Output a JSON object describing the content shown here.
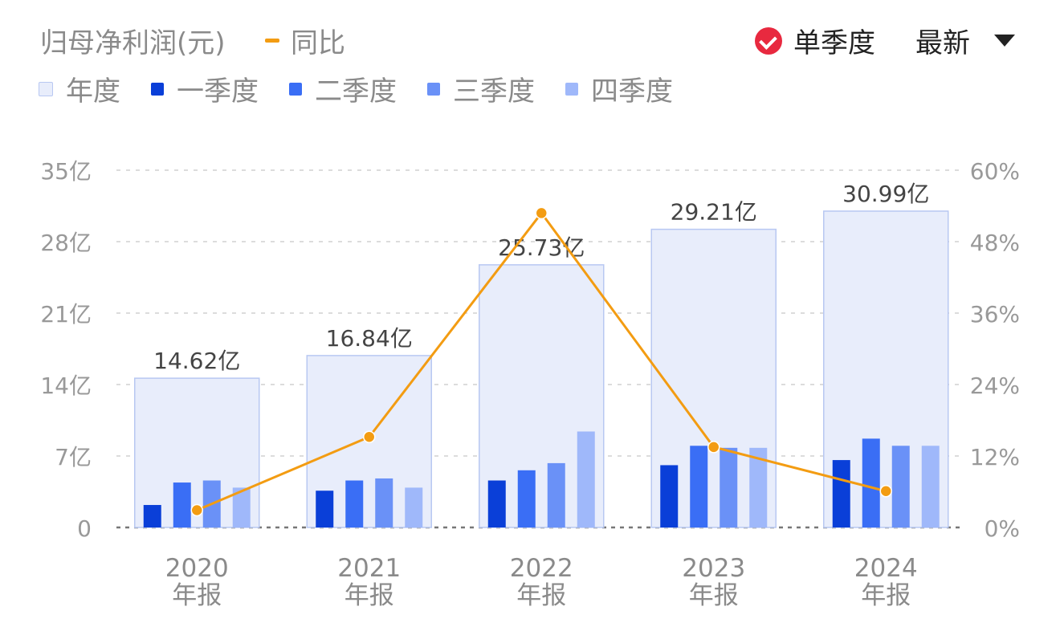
{
  "header": {
    "title": "归母净利润(元)",
    "yoy_label": "同比",
    "toggle_label": "单季度",
    "sort_label": "最新"
  },
  "legend": [
    {
      "label": "年度",
      "color": "#e8edfb"
    },
    {
      "label": "一季度",
      "color": "#0a3fd8"
    },
    {
      "label": "二季度",
      "color": "#3a6ef5"
    },
    {
      "label": "三季度",
      "color": "#6a91f7"
    },
    {
      "label": "四季度",
      "color": "#9fb8fa"
    }
  ],
  "chart_data": {
    "type": "bar",
    "categories": [
      "2020",
      "2021",
      "2022",
      "2023",
      "2024"
    ],
    "category_sublabel": "年报",
    "annual": {
      "name": "年度",
      "values": [
        14.62,
        16.84,
        25.73,
        29.21,
        30.99
      ],
      "labels": [
        "14.62亿",
        "16.84亿",
        "25.73亿",
        "29.21亿",
        "30.99亿"
      ]
    },
    "quarterly": [
      {
        "name": "一季度",
        "values": [
          2.2,
          3.6,
          4.6,
          6.1,
          6.6
        ]
      },
      {
        "name": "二季度",
        "values": [
          4.4,
          4.6,
          5.6,
          8.0,
          8.7
        ]
      },
      {
        "name": "三季度",
        "values": [
          4.6,
          4.8,
          6.3,
          7.8,
          8.0
        ]
      },
      {
        "name": "四季度",
        "values": [
          3.9,
          3.9,
          9.4,
          7.8,
          8.0
        ]
      }
    ],
    "yoy": {
      "name": "同比",
      "values": [
        2.9,
        15.2,
        52.8,
        13.5,
        6.1
      ]
    },
    "ylim_left": [
      0,
      35
    ],
    "yticks_left": [
      "0",
      "7亿",
      "14亿",
      "21亿",
      "28亿",
      "35亿"
    ],
    "ylim_right": [
      0,
      60
    ],
    "yticks_right": [
      "0%",
      "12%",
      "24%",
      "36%",
      "48%",
      "60%"
    ],
    "colors": {
      "annual_fill": "#e8edfb",
      "annual_stroke": "#b8c8f2",
      "yoy": "#f39c12"
    },
    "grid": true
  }
}
